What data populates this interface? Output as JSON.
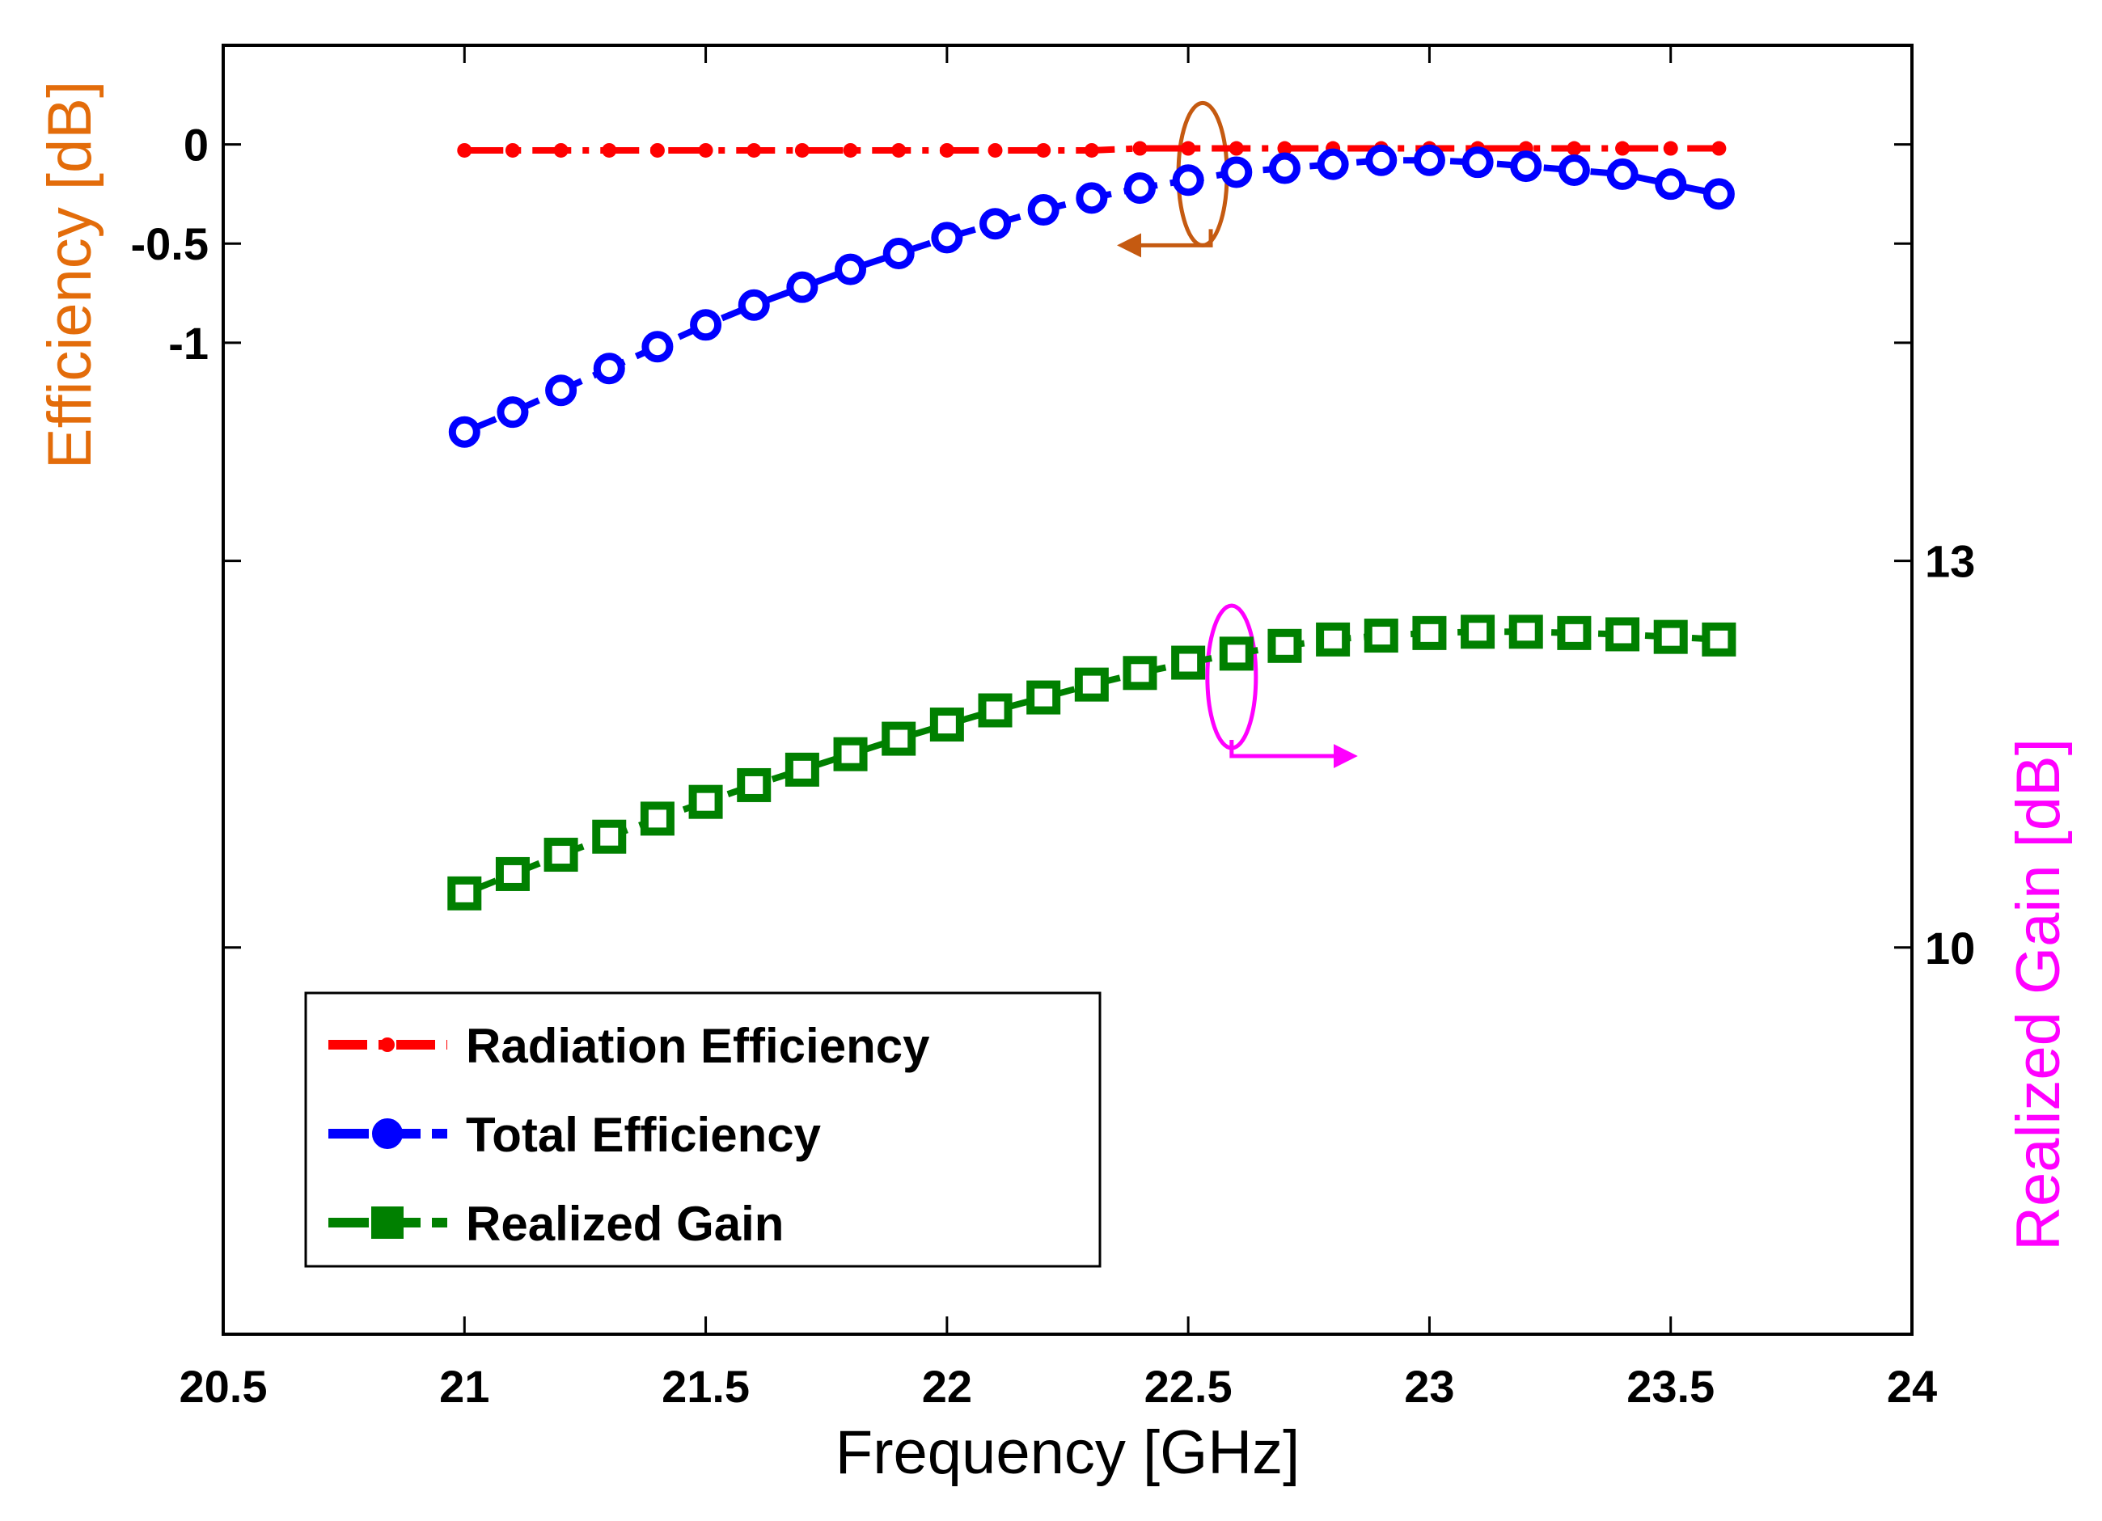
{
  "chart_data": {
    "type": "line",
    "xlabel": "Frequency [GHz]",
    "ylabel": "Efficiency [dB]",
    "y2label": "Realized Gain [dB]",
    "xlim": [
      20.5,
      24
    ],
    "ylim": [
      -6,
      0.5
    ],
    "y2lim": [
      7,
      17
    ],
    "xticks": [
      "20.5",
      "21",
      "21.5",
      "22",
      "22.5",
      "23",
      "23.5",
      "24"
    ],
    "yticks": [
      "0",
      "-0.5",
      "-1"
    ],
    "y2ticks": [
      "13",
      "10"
    ],
    "grid": false,
    "legend_position": "bottom-left",
    "colors": {
      "radiation": "#ff0000",
      "total": "#0000ff",
      "gain": "#008000",
      "left_axis_title": "#e36c0a",
      "right_axis_title": "#ff00ff",
      "left_marker": "#c55a11",
      "right_marker": "#ff00ff"
    },
    "x": [
      21.0,
      21.1,
      21.2,
      21.3,
      21.4,
      21.5,
      21.6,
      21.7,
      21.8,
      21.9,
      22.0,
      22.1,
      22.2,
      22.3,
      22.4,
      22.5,
      22.6,
      22.7,
      22.8,
      22.9,
      23.0,
      23.1,
      23.2,
      23.3,
      23.4,
      23.5,
      23.6
    ],
    "series": [
      {
        "name": "Radiation Efficiency",
        "axis": "left",
        "values": [
          -0.03,
          -0.03,
          -0.03,
          -0.03,
          -0.03,
          -0.03,
          -0.03,
          -0.03,
          -0.03,
          -0.03,
          -0.03,
          -0.03,
          -0.03,
          -0.03,
          -0.02,
          -0.02,
          -0.02,
          -0.02,
          -0.02,
          -0.02,
          -0.02,
          -0.02,
          -0.02,
          -0.02,
          -0.02,
          -0.02,
          -0.02
        ]
      },
      {
        "name": "Total Efficiency",
        "axis": "left",
        "values": [
          -1.45,
          -1.35,
          -1.24,
          -1.13,
          -1.02,
          -0.91,
          -0.81,
          -0.72,
          -0.63,
          -0.55,
          -0.47,
          -0.4,
          -0.33,
          -0.27,
          -0.22,
          -0.18,
          -0.14,
          -0.12,
          -0.1,
          -0.08,
          -0.08,
          -0.09,
          -0.11,
          -0.13,
          -0.15,
          -0.2,
          -0.25
        ]
      },
      {
        "name": "Realized Gain",
        "axis": "right",
        "values": [
          10.42,
          10.57,
          10.72,
          10.86,
          11.0,
          11.13,
          11.26,
          11.38,
          11.5,
          11.62,
          11.73,
          11.84,
          11.94,
          12.04,
          12.13,
          12.21,
          12.28,
          12.34,
          12.39,
          12.42,
          12.44,
          12.45,
          12.45,
          12.44,
          12.43,
          12.41,
          12.39
        ]
      }
    ],
    "annotations": [
      {
        "type": "ellipse-arrow",
        "target": "left",
        "x": 22.53,
        "y": -0.15,
        "arrow_direction": "left"
      },
      {
        "type": "ellipse-arrow",
        "target": "right",
        "x": 22.59,
        "y2": 12.1,
        "arrow_direction": "right"
      }
    ]
  }
}
